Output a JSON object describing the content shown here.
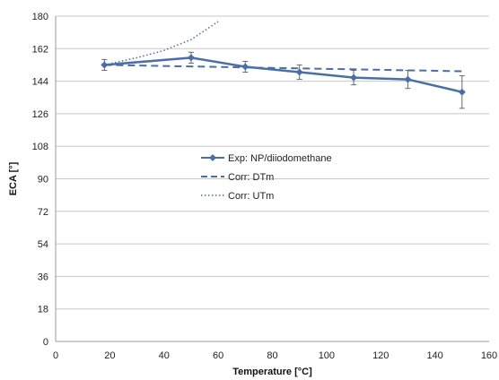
{
  "chart_data": {
    "type": "line",
    "title": "",
    "xlabel": "Temperature [°C]",
    "ylabel": "ECA [°]",
    "xlim": [
      0,
      160
    ],
    "ylim": [
      0,
      180
    ],
    "xticks": [
      0,
      20,
      40,
      60,
      80,
      100,
      120,
      140,
      160
    ],
    "yticks": [
      0,
      18,
      36,
      54,
      72,
      90,
      108,
      126,
      144,
      162,
      180
    ],
    "grid": "horizontal",
    "legend_position": "center",
    "series": [
      {
        "name": "Exp: NP/diiodomethane",
        "style": "solid-line-with-markers-and-error-bars",
        "color": "#4a6fa5",
        "x": [
          18,
          50,
          70,
          90,
          110,
          130,
          150
        ],
        "y": [
          153,
          157,
          152,
          149,
          146,
          145,
          138
        ],
        "err": [
          3,
          3,
          3,
          4,
          4,
          5,
          9
        ]
      },
      {
        "name": "Corr: DTm",
        "style": "dashed",
        "color": "#4a6fa5",
        "x": [
          18,
          150
        ],
        "y": [
          153,
          149.5
        ]
      },
      {
        "name": "Corr: UTm",
        "style": "dotted",
        "color": "#4a6fa5",
        "x": [
          18,
          30,
          40,
          50,
          55,
          60
        ],
        "y": [
          153,
          157,
          161,
          167,
          172,
          177
        ]
      }
    ]
  }
}
